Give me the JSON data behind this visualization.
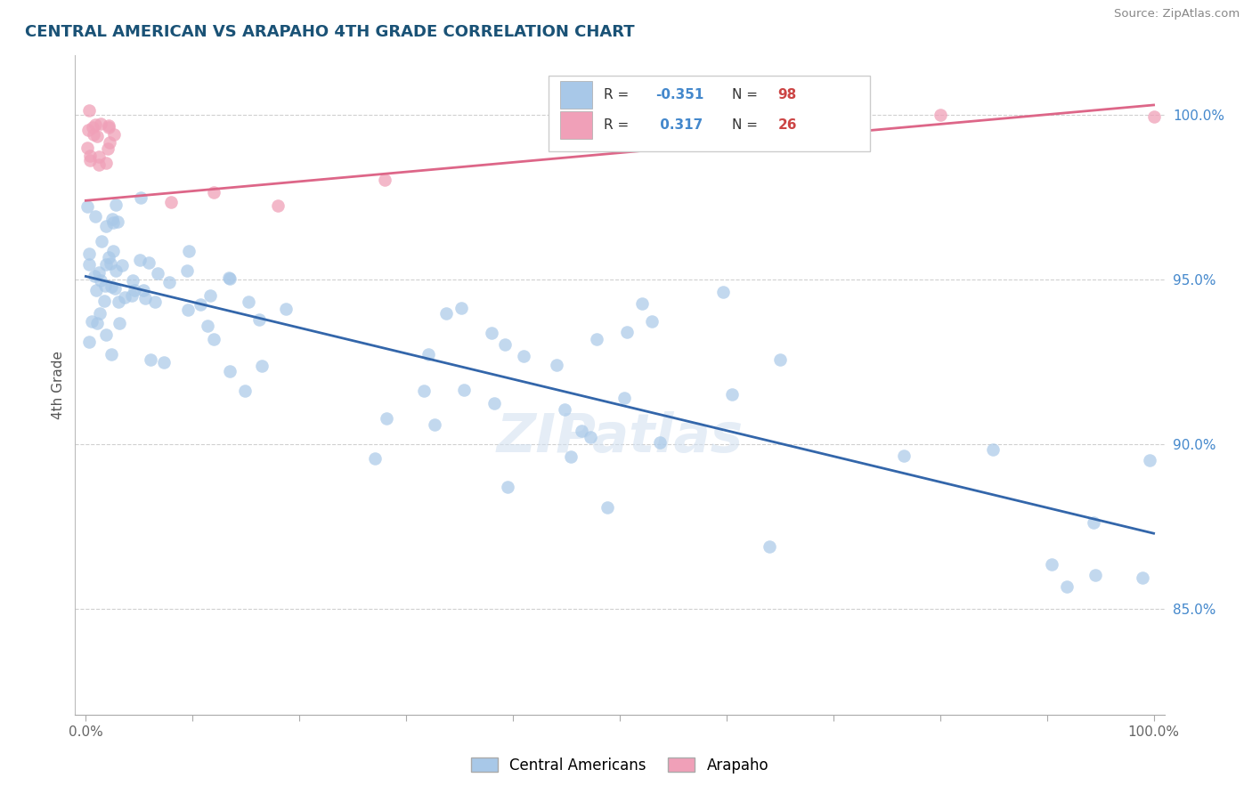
{
  "title": "CENTRAL AMERICAN VS ARAPAHO 4TH GRADE CORRELATION CHART",
  "source": "Source: ZipAtlas.com",
  "ylabel": "4th Grade",
  "xlim": [
    -0.01,
    1.01
  ],
  "ylim": [
    0.818,
    1.018
  ],
  "yticks": [
    0.85,
    0.9,
    0.95,
    1.0
  ],
  "ytick_labels": [
    "85.0%",
    "90.0%",
    "95.0%",
    "100.0%"
  ],
  "legend_R1": "-0.351",
  "legend_N1": "98",
  "legend_R2": "0.317",
  "legend_N2": "26",
  "blue_color": "#a8c8e8",
  "pink_color": "#f0a0b8",
  "trendline_blue": "#3366aa",
  "trendline_pink": "#dd6688",
  "blue_trend_x": [
    0.0,
    1.0
  ],
  "blue_trend_y": [
    0.951,
    0.873
  ],
  "pink_trend_x": [
    0.0,
    1.0
  ],
  "pink_trend_y": [
    0.974,
    1.003
  ],
  "watermark": "ZIPatlas",
  "background_color": "#ffffff",
  "grid_color": "#d0d0d0"
}
